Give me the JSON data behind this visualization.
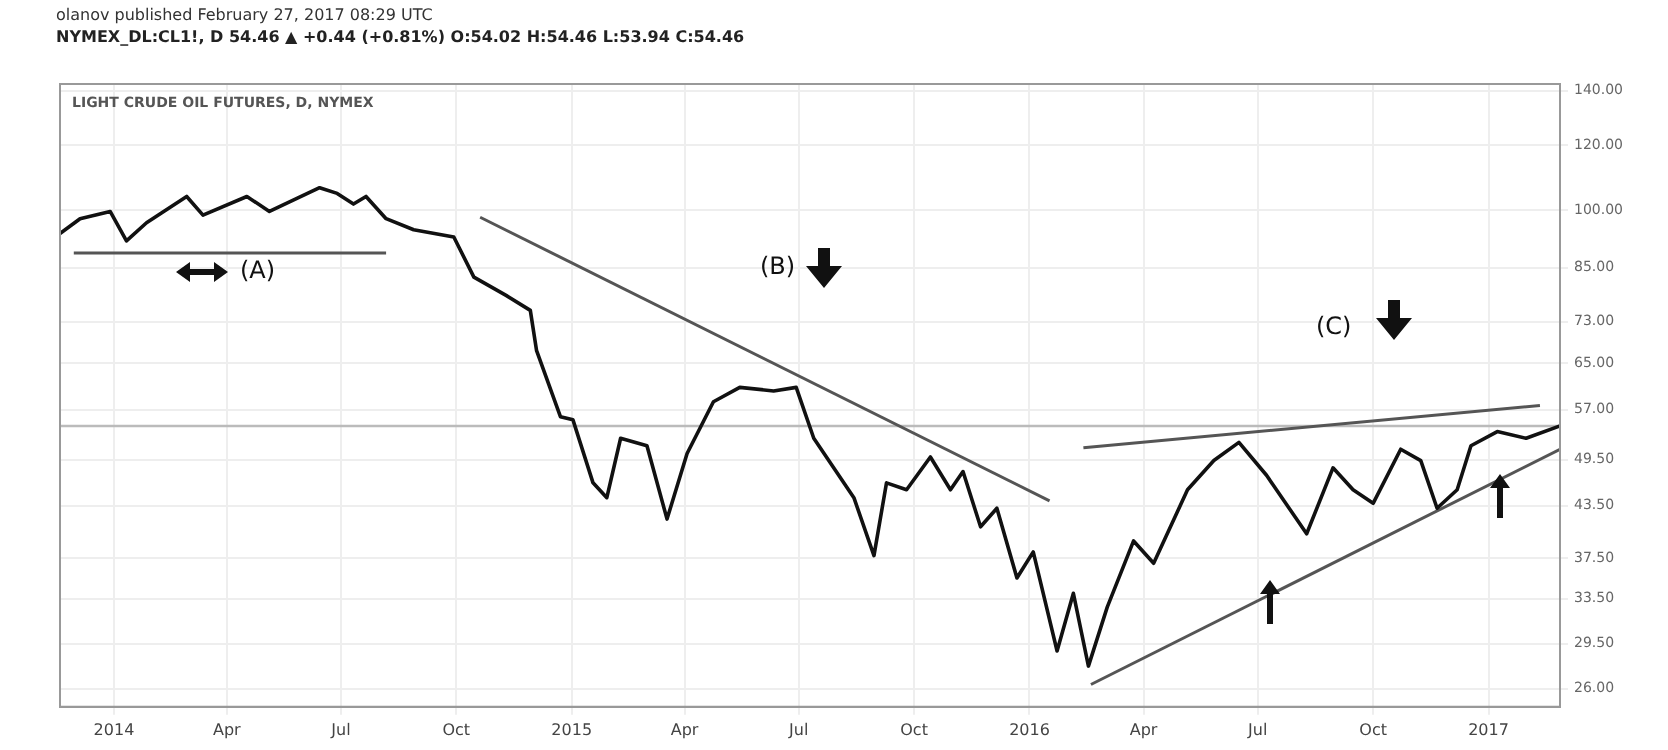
{
  "chart_data": {
    "type": "line",
    "title": "LIGHT CRUDE OIL FUTURES, D, NYMEX",
    "subtitle": "NYMEX_DL:CL1!, D 54.46 ▲ +0.44 (+0.81%) O:54.02 H:54.46 L:53.94 C:54.46",
    "annotations": [
      "olanov published February 27, 2017 08:29 UTC",
      "(A)",
      "(B)",
      "(C)"
    ],
    "series": [
      {
        "color": "#111111",
        "x": [
          "2013-11-19",
          "2013-12-05",
          "2013-12-29",
          "2014-01-11",
          "2014-01-27",
          "2014-02-28",
          "2014-03-13",
          "2014-04-17",
          "2014-05-05",
          "2014-06-14",
          "2014-06-28",
          "2014-07-11",
          "2014-07-21",
          "2014-08-06",
          "2014-08-28",
          "2014-09-29",
          "2014-10-15",
          "2014-11-10",
          "2014-11-29",
          "2014-12-04",
          "2014-12-23",
          "2015-01-02",
          "2015-01-18",
          "2015-01-29",
          "2015-02-09",
          "2015-03-02",
          "2015-03-18",
          "2015-04-03",
          "2015-04-24",
          "2015-05-15",
          "2015-06-11",
          "2015-06-29",
          "2015-07-13",
          "2015-08-14",
          "2015-08-30",
          "2015-09-09",
          "2015-09-25",
          "2015-10-14",
          "2015-10-30",
          "2015-11-09",
          "2015-11-23",
          "2015-12-06",
          "2015-12-22",
          "2016-01-04",
          "2016-01-23",
          "2016-02-05",
          "2016-02-17",
          "2016-03-03",
          "2016-03-24",
          "2016-04-09",
          "2016-05-06",
          "2016-05-27",
          "2016-06-16",
          "2016-07-08",
          "2016-08-09",
          "2016-08-30",
          "2016-09-15",
          "2016-10-01",
          "2016-10-23",
          "2016-11-08",
          "2016-11-21",
          "2016-12-07",
          "2016-12-18",
          "2017-01-08",
          "2017-01-31",
          "2017-02-27"
        ],
        "values": [
          93.6,
          97.6,
          99.6,
          91.7,
          96.5,
          103.9,
          98.6,
          103.9,
          99.6,
          106.5,
          104.8,
          101.7,
          103.9,
          97.6,
          94.6,
          92.7,
          82.8,
          78.6,
          75.4,
          67.3,
          55.9,
          55.4,
          46.4,
          44.5,
          52.6,
          51.5,
          41.9,
          50.4,
          58.3,
          60.7,
          60.1,
          60.7,
          52.6,
          44.5,
          37.8,
          46.4,
          45.5,
          49.9,
          45.5,
          47.9,
          41.0,
          43.2,
          35.5,
          38.2,
          28.9,
          34.0,
          27.7,
          32.7,
          39.4,
          37.0,
          45.5,
          49.4,
          52.0,
          47.4,
          40.2,
          48.4,
          45.5,
          43.8,
          51.0,
          49.4,
          43.2,
          45.5,
          51.5,
          53.6,
          52.6,
          54.46
        ]
      },
      {
        "type": "line",
        "color": "#555555",
        "x": [
          "2013-11-30",
          "2014-08-06"
        ],
        "values": [
          88.6,
          88.6
        ]
      },
      {
        "type": "line",
        "color": "#555555",
        "x": [
          "2014-10-20",
          "2016-01-17"
        ],
        "values": [
          98.0,
          44.1
        ]
      },
      {
        "type": "line",
        "color": "#555555",
        "x": [
          "2016-02-13",
          "2017-02-11"
        ],
        "values": [
          51.2,
          57.7
        ]
      },
      {
        "type": "line",
        "color": "#555555",
        "x": [
          "2016-02-19",
          "2017-02-27"
        ],
        "values": [
          26.3,
          51.0
        ]
      }
    ],
    "xlim": [
      "2013-11-19",
      "2017-02-27"
    ],
    "xticks": [
      {
        "value": "2014-01-01",
        "label": "2014"
      },
      {
        "value": "2014-04-01",
        "label": "Apr"
      },
      {
        "value": "2014-07-01",
        "label": "Jul"
      },
      {
        "value": "2014-10-01",
        "label": "Oct"
      },
      {
        "value": "2015-01-01",
        "label": "2015"
      },
      {
        "value": "2015-04-01",
        "label": "Apr"
      },
      {
        "value": "2015-07-01",
        "label": "Jul"
      },
      {
        "value": "2015-10-01",
        "label": "Oct"
      },
      {
        "value": "2016-01-01",
        "label": "2016"
      },
      {
        "value": "2016-04-01",
        "label": "Apr"
      },
      {
        "value": "2016-07-01",
        "label": "Jul"
      },
      {
        "value": "2016-10-01",
        "label": "Oct"
      },
      {
        "value": "2017-01-01",
        "label": "2017"
      }
    ],
    "ylim": [
      24.7,
      142.6
    ],
    "yticks": [
      {
        "value": 140,
        "label": "140.00"
      },
      {
        "value": 120,
        "label": "120.00"
      },
      {
        "value": 100,
        "label": "100.00"
      },
      {
        "value": 85,
        "label": "85.00"
      },
      {
        "value": 73,
        "label": "73.00"
      },
      {
        "value": 65,
        "label": "65.00"
      },
      {
        "value": 57,
        "label": "57.00"
      },
      {
        "value": 49.5,
        "label": "49.50"
      },
      {
        "value": 43.5,
        "label": "43.50"
      },
      {
        "value": 37.5,
        "label": "37.50"
      },
      {
        "value": 33.5,
        "label": "33.50"
      },
      {
        "value": 29.5,
        "label": "29.50"
      },
      {
        "value": 26,
        "label": "26.00"
      }
    ],
    "ref_lines": [
      {
        "axis": "y",
        "value": 54.46,
        "color": "#bbbbbb"
      }
    ],
    "log": "y",
    "grid": true,
    "legend": false,
    "marker": "none",
    "line_style": "solid"
  }
}
